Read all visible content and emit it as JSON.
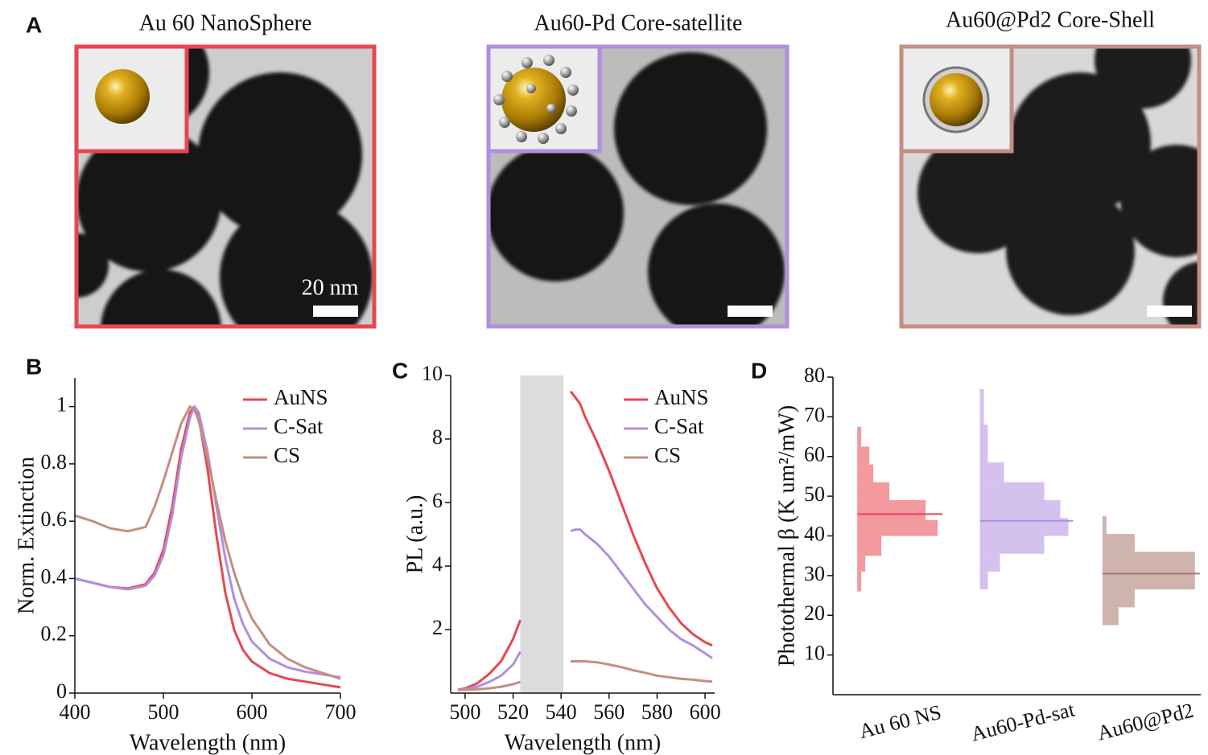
{
  "panel_a": {
    "label": "A",
    "titles": [
      "Au 60 NanoSphere",
      "Au60-Pd Core-satellite",
      "Au60@Pd2  Core-Shell"
    ],
    "scale_bar": "20 nm"
  },
  "chart_data": [
    {
      "type": "line",
      "label": "B",
      "x_label": "Wavelength (nm)",
      "y_label": "Norm. Extinction",
      "x": [
        400,
        420,
        440,
        460,
        480,
        490,
        500,
        510,
        520,
        530,
        535,
        540,
        550,
        560,
        570,
        580,
        590,
        600,
        620,
        640,
        660,
        680,
        700
      ],
      "xlim": [
        400,
        700
      ],
      "xticks": [
        400,
        500,
        600,
        700
      ],
      "ylim": [
        0,
        1.1
      ],
      "yticks": [
        0,
        0.2,
        0.4,
        0.6,
        0.8,
        1
      ],
      "series": [
        {
          "name": "AuNS",
          "color": "#e8474f",
          "values": [
            0.4,
            0.385,
            0.37,
            0.365,
            0.38,
            0.42,
            0.5,
            0.65,
            0.85,
            0.98,
            1.0,
            0.96,
            0.78,
            0.55,
            0.35,
            0.22,
            0.15,
            0.11,
            0.07,
            0.05,
            0.04,
            0.03,
            0.02
          ]
        },
        {
          "name": "C-Sat",
          "color": "#b08ee0",
          "values": [
            0.4,
            0.385,
            0.37,
            0.362,
            0.375,
            0.41,
            0.48,
            0.62,
            0.82,
            0.96,
            1.0,
            0.98,
            0.84,
            0.65,
            0.47,
            0.33,
            0.24,
            0.18,
            0.12,
            0.09,
            0.075,
            0.065,
            0.055
          ]
        },
        {
          "name": "CS",
          "color": "#c28f82",
          "values": [
            0.62,
            0.6,
            0.575,
            0.565,
            0.58,
            0.65,
            0.74,
            0.84,
            0.94,
            1.0,
            0.99,
            0.95,
            0.82,
            0.67,
            0.53,
            0.42,
            0.33,
            0.26,
            0.17,
            0.12,
            0.09,
            0.07,
            0.05
          ]
        }
      ]
    },
    {
      "type": "line",
      "label": "C",
      "x_label": "Wavelength (nm)",
      "y_label": "PL (a.u.)",
      "x": [
        497,
        500,
        505,
        510,
        515,
        520,
        523,
        532,
        544,
        546,
        548,
        550,
        555,
        560,
        565,
        570,
        575,
        580,
        585,
        590,
        595,
        600,
        603
      ],
      "xlim": [
        494,
        604
      ],
      "xticks": [
        500,
        520,
        540,
        560,
        580,
        600
      ],
      "ylim": [
        0,
        10
      ],
      "yticks": [
        2,
        4,
        6,
        8,
        10
      ],
      "shaded_region": [
        523,
        541
      ],
      "series": [
        {
          "name": "AuNS",
          "color": "#e8474f",
          "values": [
            0.1,
            0.15,
            0.3,
            0.6,
            1.0,
            1.7,
            2.3,
            null,
            9.5,
            9.3,
            9.1,
            8.7,
            7.9,
            7.0,
            6.0,
            5.0,
            4.1,
            3.3,
            2.7,
            2.2,
            1.85,
            1.6,
            1.5
          ]
        },
        {
          "name": "C-Sat",
          "color": "#b08ee0",
          "values": [
            0.1,
            0.12,
            0.2,
            0.35,
            0.55,
            0.9,
            1.3,
            null,
            5.1,
            5.15,
            5.15,
            5.0,
            4.7,
            4.3,
            3.8,
            3.3,
            2.8,
            2.4,
            2.0,
            1.7,
            1.5,
            1.25,
            1.1
          ]
        },
        {
          "name": "CS",
          "color": "#c28f82",
          "values": [
            0.1,
            0.1,
            0.12,
            0.15,
            0.2,
            0.28,
            0.35,
            null,
            1.0,
            1.0,
            1.0,
            1.0,
            0.97,
            0.9,
            0.82,
            0.72,
            0.64,
            0.55,
            0.5,
            0.45,
            0.42,
            0.38,
            0.36
          ]
        }
      ]
    },
    {
      "type": "histogram",
      "label": "D",
      "y_label": "Photothermal β  (K um²/mW)",
      "categories": [
        "Au 60 NS",
        "Au60-Pd-sat",
        "Au60@Pd2"
      ],
      "ylim": [
        0,
        80
      ],
      "yticks": [
        10,
        20,
        30,
        40,
        50,
        60,
        70,
        80
      ],
      "series": [
        {
          "color": "#e8474f",
          "bins": [
            26,
            31,
            35,
            40,
            44,
            49,
            53.5,
            58,
            62.5,
            67.5
          ],
          "counts": [
            1,
            2,
            6,
            20,
            17,
            8,
            4,
            3,
            1
          ],
          "mean": 45.5
        },
        {
          "color": "#b08ee0",
          "bins": [
            26.5,
            31,
            35.5,
            40,
            44.5,
            49,
            53.5,
            58.5,
            63,
            68,
            72.5,
            77
          ],
          "counts": [
            2,
            5,
            16,
            22,
            20,
            16,
            6,
            2,
            2,
            1,
            1
          ],
          "mean": 43.8
        },
        {
          "color": "#a8776b",
          "bins": [
            17.5,
            22,
            26.5,
            31,
            36,
            40.5,
            45
          ],
          "counts": [
            4,
            8,
            23,
            23,
            8,
            1
          ],
          "mean": 30.5
        }
      ]
    }
  ]
}
